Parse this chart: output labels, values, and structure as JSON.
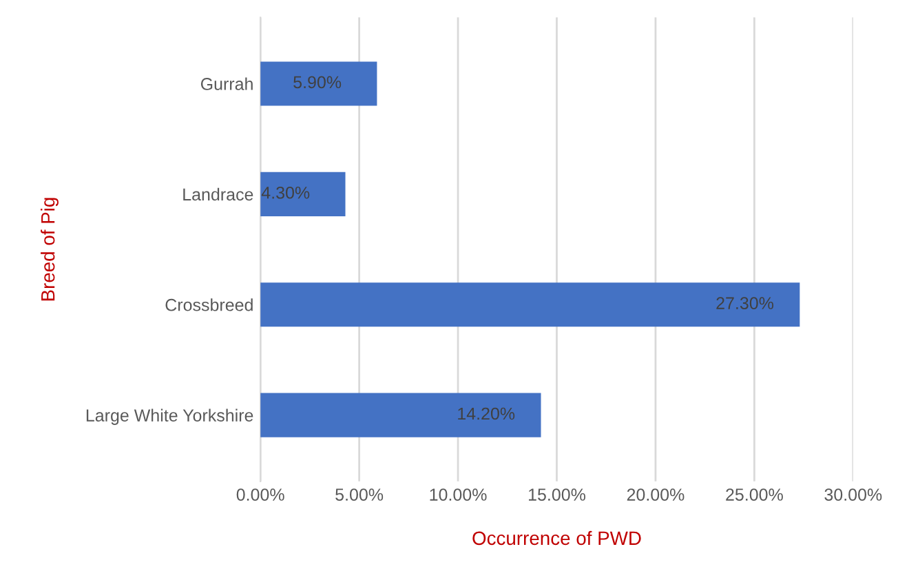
{
  "chart_data": {
    "type": "bar",
    "orientation": "horizontal",
    "categories": [
      "Gurrah",
      "Landrace",
      "Crossbreed",
      "Large White Yorkshire"
    ],
    "values": [
      5.9,
      4.3,
      27.3,
      14.2
    ],
    "value_labels": [
      "5.90%",
      "4.30%",
      "27.30%",
      "14.20%"
    ],
    "color": "#4472c4",
    "xlabel": "Occurrence of PWD",
    "ylabel": "Breed of Pig",
    "xlim": [
      0,
      30
    ],
    "xticks": [
      {
        "value": 0,
        "label": "0.00%"
      },
      {
        "value": 5,
        "label": "5.00%"
      },
      {
        "value": 10,
        "label": "10.00%"
      },
      {
        "value": 15,
        "label": "15.00%"
      },
      {
        "value": 20,
        "label": "20.00%"
      },
      {
        "value": 25,
        "label": "25.00%"
      },
      {
        "value": 30,
        "label": "30.00%"
      }
    ],
    "grid": "x"
  }
}
